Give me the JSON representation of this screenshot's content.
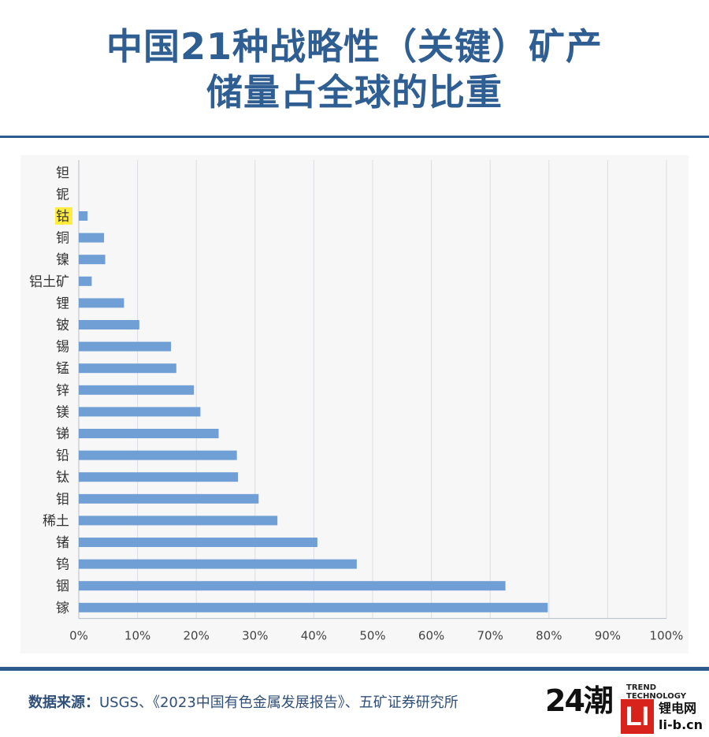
{
  "header": {
    "title_line1": "中国21种战略性（关键）矿产",
    "title_line2": "储量占全球的比重"
  },
  "footer": {
    "source_label": "数据来源：",
    "source_text": "USGS、《2023中国有色金属发展报告》、五矿证券研究所",
    "logo_24": "24潮",
    "logo_trend": "TREND",
    "logo_technology": "TECHNOLOGY",
    "logo_li_mark": "LI",
    "logo_li_name": "锂电网",
    "logo_li_domain": "li-b.cn"
  },
  "colors": {
    "bar": "#6f9fd4",
    "title": "#2f5e92",
    "highlight": "#ffec3d"
  },
  "chart_data": {
    "type": "bar",
    "orientation": "horizontal",
    "categories": [
      "钽",
      "铌",
      "钴",
      "铜",
      "镍",
      "铝土矿",
      "锂",
      "铍",
      "锡",
      "锰",
      "锌",
      "镁",
      "锑",
      "铅",
      "钛",
      "钼",
      "稀土",
      "锗",
      "钨",
      "铟",
      "镓"
    ],
    "values": [
      0,
      0,
      1.5,
      4.3,
      4.5,
      2.2,
      7.7,
      10.3,
      15.7,
      16.6,
      19.6,
      20.7,
      23.8,
      26.9,
      27.1,
      30.6,
      33.8,
      40.6,
      47.3,
      72.6,
      79.8
    ],
    "highlighted_category": "钴",
    "xlim": [
      0,
      100
    ],
    "xticks": [
      "0%",
      "10%",
      "20%",
      "30%",
      "40%",
      "50%",
      "60%",
      "70%",
      "80%",
      "90%",
      "100%"
    ],
    "grid": true,
    "title": "",
    "xlabel": "",
    "ylabel": ""
  }
}
